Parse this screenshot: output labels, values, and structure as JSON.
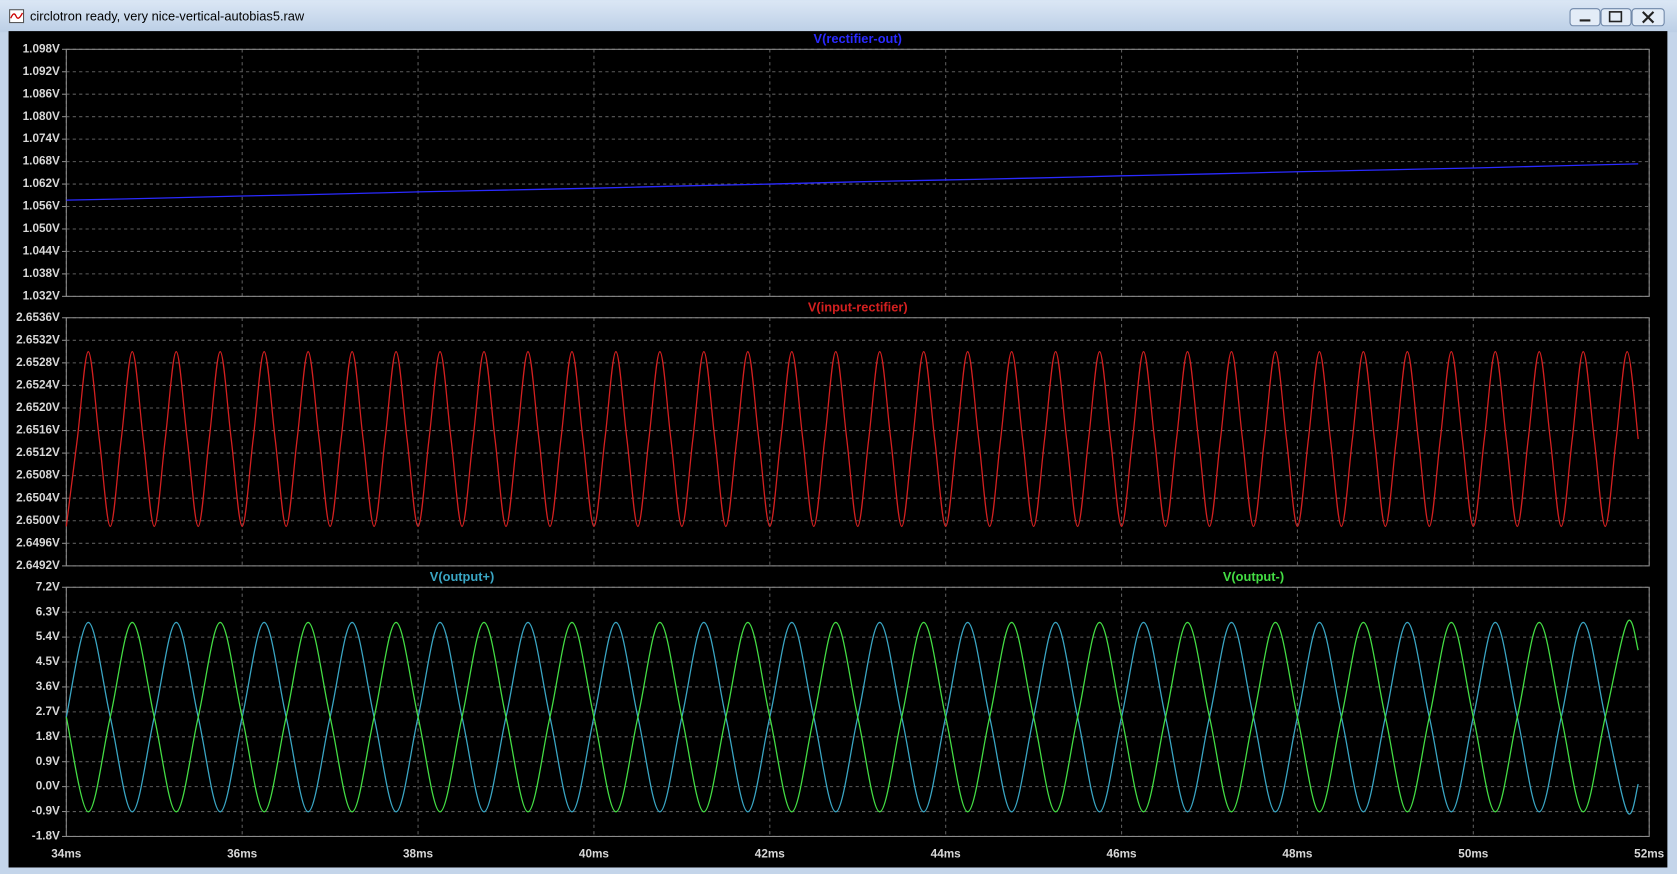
{
  "window": {
    "title": "circlotron ready, very nice-vertical-autobias5.raw"
  },
  "chart_data": [
    {
      "type": "line",
      "x": [
        34,
        35,
        36,
        37,
        38,
        39,
        40,
        41,
        42,
        43,
        44,
        45,
        46,
        47,
        48,
        49,
        50,
        51,
        51.875
      ],
      "series": [
        {
          "name": "V(rectifier-out)",
          "color": "#2a2aff",
          "values": [
            1.0577,
            1.0582,
            1.0588,
            1.0593,
            1.0599,
            1.0604,
            1.0609,
            1.0615,
            1.062,
            1.0626,
            1.0631,
            1.0636,
            1.0642,
            1.0647,
            1.0653,
            1.0658,
            1.0663,
            1.0669,
            1.0674
          ]
        }
      ],
      "xlim": [
        34,
        52
      ],
      "ylim": [
        1.032,
        1.098
      ],
      "yticks": [
        {
          "value": 1.098,
          "label": "1.098V"
        },
        {
          "value": 1.092,
          "label": "1.092V"
        },
        {
          "value": 1.086,
          "label": "1.086V"
        },
        {
          "value": 1.08,
          "label": "1.080V"
        },
        {
          "value": 1.074,
          "label": "1.074V"
        },
        {
          "value": 1.068,
          "label": "1.068V"
        },
        {
          "value": 1.062,
          "label": "1.062V"
        },
        {
          "value": 1.056,
          "label": "1.056V"
        },
        {
          "value": 1.05,
          "label": "1.050V"
        },
        {
          "value": 1.044,
          "label": "1.044V"
        },
        {
          "value": 1.038,
          "label": "1.038V"
        },
        {
          "value": 1.032,
          "label": "1.032V"
        }
      ],
      "grid": true
    },
    {
      "type": "line",
      "x": [
        34,
        34.125,
        34.25,
        34.375,
        34.5,
        34.625,
        34.75,
        34.875,
        35,
        35.125,
        35.25,
        35.375,
        35.5,
        35.625,
        35.75,
        35.875,
        36,
        36.125,
        36.25,
        36.375,
        36.5,
        36.625,
        36.75,
        36.875,
        37,
        37.125,
        37.25,
        37.375,
        37.5,
        37.625,
        37.75,
        37.875,
        38,
        38.125,
        38.25,
        38.375,
        38.5,
        38.625,
        38.75,
        38.875,
        39,
        39.125,
        39.25,
        39.375,
        39.5,
        39.625,
        39.75,
        39.875,
        40,
        40.125,
        40.25,
        40.375,
        40.5,
        40.625,
        40.75,
        40.875,
        41,
        41.125,
        41.25,
        41.375,
        41.5,
        41.625,
        41.75,
        41.875,
        42,
        42.125,
        42.25,
        42.375,
        42.5,
        42.625,
        42.75,
        42.875,
        43,
        43.125,
        43.25,
        43.375,
        43.5,
        43.625,
        43.75,
        43.875,
        44,
        44.125,
        44.25,
        44.375,
        44.5,
        44.625,
        44.75,
        44.875,
        45,
        45.125,
        45.25,
        45.375,
        45.5,
        45.625,
        45.75,
        45.875,
        46,
        46.125,
        46.25,
        46.375,
        46.5,
        46.625,
        46.75,
        46.875,
        47,
        47.125,
        47.25,
        47.375,
        47.5,
        47.625,
        47.75,
        47.875,
        48,
        48.125,
        48.25,
        48.375,
        48.5,
        48.625,
        48.75,
        48.875,
        49,
        49.125,
        49.25,
        49.375,
        49.5,
        49.625,
        49.75,
        49.875,
        50,
        50.125,
        50.25,
        50.375,
        50.5,
        50.625,
        50.75,
        50.875,
        51,
        51.125,
        51.25,
        51.375,
        51.5,
        51.625,
        51.75,
        51.875
      ],
      "series": [
        {
          "name": "V(input-rectifier)",
          "color": "#d42020",
          "values": [
            2.6499,
            2.65145,
            2.653,
            2.65145,
            2.6499,
            2.65145,
            2.653,
            2.65145,
            2.6499,
            2.65145,
            2.653,
            2.65145,
            2.6499,
            2.65145,
            2.653,
            2.65145,
            2.6499,
            2.65145,
            2.653,
            2.65145,
            2.6499,
            2.65145,
            2.653,
            2.65145,
            2.6499,
            2.65145,
            2.653,
            2.65145,
            2.6499,
            2.65145,
            2.653,
            2.65145,
            2.6499,
            2.65145,
            2.653,
            2.65145,
            2.6499,
            2.65145,
            2.653,
            2.65145,
            2.6499,
            2.65145,
            2.653,
            2.65145,
            2.6499,
            2.65145,
            2.653,
            2.65145,
            2.6499,
            2.65145,
            2.653,
            2.65145,
            2.6499,
            2.65145,
            2.653,
            2.65145,
            2.6499,
            2.65145,
            2.653,
            2.65145,
            2.6499,
            2.65145,
            2.653,
            2.65145,
            2.6499,
            2.65145,
            2.653,
            2.65145,
            2.6499,
            2.65145,
            2.653,
            2.65145,
            2.6499,
            2.65145,
            2.653,
            2.65145,
            2.6499,
            2.65145,
            2.653,
            2.65145,
            2.6499,
            2.65145,
            2.653,
            2.65145,
            2.6499,
            2.65145,
            2.653,
            2.65145,
            2.6499,
            2.65145,
            2.653,
            2.65145,
            2.6499,
            2.65145,
            2.653,
            2.65145,
            2.6499,
            2.65145,
            2.653,
            2.65145,
            2.6499,
            2.65145,
            2.653,
            2.65145,
            2.6499,
            2.65145,
            2.653,
            2.65145,
            2.6499,
            2.65145,
            2.653,
            2.65145,
            2.6499,
            2.65145,
            2.653,
            2.65145,
            2.6499,
            2.65145,
            2.653,
            2.65145,
            2.6499,
            2.65145,
            2.653,
            2.65145,
            2.6499,
            2.65145,
            2.653,
            2.65145,
            2.6499,
            2.65145,
            2.653,
            2.65145,
            2.6499,
            2.65145,
            2.653,
            2.65145,
            2.6499,
            2.65145,
            2.653,
            2.65145,
            2.6499,
            2.65145,
            2.653,
            2.65145
          ]
        }
      ],
      "xlim": [
        34,
        52
      ],
      "ylim": [
        2.6492,
        2.6536
      ],
      "yticks": [
        {
          "value": 2.6536,
          "label": "2.6536V"
        },
        {
          "value": 2.6532,
          "label": "2.6532V"
        },
        {
          "value": 2.6528,
          "label": "2.6528V"
        },
        {
          "value": 2.6524,
          "label": "2.6524V"
        },
        {
          "value": 2.652,
          "label": "2.6520V"
        },
        {
          "value": 2.6516,
          "label": "2.6516V"
        },
        {
          "value": 2.6512,
          "label": "2.6512V"
        },
        {
          "value": 2.6508,
          "label": "2.6508V"
        },
        {
          "value": 2.6504,
          "label": "2.6504V"
        },
        {
          "value": 2.65,
          "label": "2.6500V"
        },
        {
          "value": 2.6496,
          "label": "2.6496V"
        },
        {
          "value": 2.6492,
          "label": "2.6492V"
        }
      ],
      "grid": true
    },
    {
      "type": "line",
      "x": [
        34,
        34.25,
        34.5,
        34.75,
        35,
        35.25,
        35.5,
        35.75,
        36,
        36.25,
        36.5,
        36.75,
        37,
        37.25,
        37.5,
        37.75,
        38,
        38.25,
        38.5,
        38.75,
        39,
        39.25,
        39.5,
        39.75,
        40,
        40.25,
        40.5,
        40.75,
        41,
        41.25,
        41.5,
        41.75,
        42,
        42.25,
        42.5,
        42.75,
        43,
        43.25,
        43.5,
        43.75,
        44,
        44.25,
        44.5,
        44.75,
        45,
        45.25,
        45.5,
        45.75,
        46,
        46.25,
        46.5,
        46.75,
        47,
        47.25,
        47.5,
        47.75,
        48,
        48.25,
        48.5,
        48.75,
        49,
        49.25,
        49.5,
        49.75,
        50,
        50.25,
        50.5,
        50.75,
        51,
        51.25,
        51.5,
        51.75,
        51.875
      ],
      "series": [
        {
          "name": "V(output+)",
          "color": "#3aa6c4",
          "values": [
            2.51,
            5.93,
            2.51,
            -0.91,
            2.51,
            5.93,
            2.51,
            -0.91,
            2.51,
            5.93,
            2.51,
            -0.91,
            2.51,
            5.93,
            2.51,
            -0.91,
            2.51,
            5.93,
            2.51,
            -0.91,
            2.51,
            5.93,
            2.51,
            -0.91,
            2.51,
            5.93,
            2.51,
            -0.91,
            2.51,
            5.93,
            2.51,
            -0.91,
            2.51,
            5.93,
            2.51,
            -0.91,
            2.51,
            5.93,
            2.51,
            -0.91,
            2.51,
            5.93,
            2.51,
            -0.91,
            2.51,
            5.93,
            2.51,
            -0.91,
            2.51,
            5.93,
            2.51,
            -0.91,
            2.51,
            5.93,
            2.51,
            -0.91,
            2.51,
            5.93,
            2.51,
            -0.91,
            2.51,
            5.93,
            2.51,
            -0.91,
            2.51,
            5.93,
            2.51,
            -0.91,
            2.51,
            5.93,
            2.51,
            -0.91,
            0.09
          ]
        },
        {
          "name": "V(output-)",
          "color": "#44dd44",
          "values": [
            2.51,
            -0.91,
            2.51,
            5.93,
            2.51,
            -0.91,
            2.51,
            5.93,
            2.51,
            -0.91,
            2.51,
            5.93,
            2.51,
            -0.91,
            2.51,
            5.93,
            2.51,
            -0.91,
            2.51,
            5.93,
            2.51,
            -0.91,
            2.51,
            5.93,
            2.51,
            -0.91,
            2.51,
            5.93,
            2.51,
            -0.91,
            2.51,
            5.93,
            2.51,
            -0.91,
            2.51,
            5.93,
            2.51,
            -0.91,
            2.51,
            5.93,
            2.51,
            -0.91,
            2.51,
            5.93,
            2.51,
            -0.91,
            2.51,
            5.93,
            2.51,
            -0.91,
            2.51,
            5.93,
            2.51,
            -0.91,
            2.51,
            5.93,
            2.51,
            -0.91,
            2.51,
            5.93,
            2.51,
            -0.91,
            2.51,
            5.93,
            2.51,
            -0.91,
            2.51,
            5.93,
            2.51,
            -0.91,
            2.51,
            5.93,
            4.93
          ]
        }
      ],
      "xlim": [
        34,
        52
      ],
      "ylim": [
        -1.8,
        7.2
      ],
      "yticks": [
        {
          "value": 7.2,
          "label": "7.2V"
        },
        {
          "value": 6.3,
          "label": "6.3V"
        },
        {
          "value": 5.4,
          "label": "5.4V"
        },
        {
          "value": 4.5,
          "label": "4.5V"
        },
        {
          "value": 3.6,
          "label": "3.6V"
        },
        {
          "value": 2.7,
          "label": "2.7V"
        },
        {
          "value": 1.8,
          "label": "1.8V"
        },
        {
          "value": 0.9,
          "label": "0.9V"
        },
        {
          "value": 0,
          "label": "0.0V"
        },
        {
          "value": -0.9,
          "label": "-0.9V"
        },
        {
          "value": -1.8,
          "label": "-1.8V"
        }
      ],
      "xticks": [
        {
          "value": 34,
          "label": "34ms"
        },
        {
          "value": 36,
          "label": "36ms"
        },
        {
          "value": 38,
          "label": "38ms"
        },
        {
          "value": 40,
          "label": "40ms"
        },
        {
          "value": 42,
          "label": "42ms"
        },
        {
          "value": 44,
          "label": "44ms"
        },
        {
          "value": 46,
          "label": "46ms"
        },
        {
          "value": 48,
          "label": "48ms"
        },
        {
          "value": 50,
          "label": "50ms"
        },
        {
          "value": 52,
          "label": "52ms"
        }
      ],
      "grid": true
    }
  ]
}
